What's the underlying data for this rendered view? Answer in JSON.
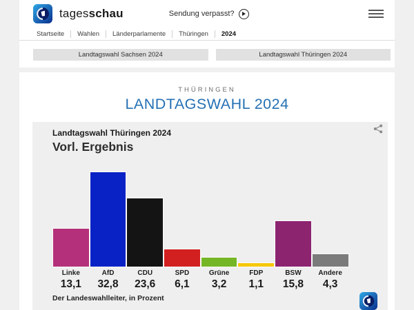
{
  "header": {
    "brand": {
      "regular": "tages",
      "bold": "schau"
    },
    "sendung_verpasst": "Sendung verpasst?",
    "breadcrumb": [
      "Startseite",
      "Wahlen",
      "Länderparlamente",
      "Thüringen",
      "2024"
    ],
    "tabs": [
      "Landtagswahl Sachsen 2024",
      "Landtagswahl Thüringen 2024"
    ]
  },
  "page": {
    "kicker": "THÜRINGEN",
    "title": "LANDTAGSWAHL 2024",
    "title_color": "#2470b4"
  },
  "chart_data": {
    "type": "bar",
    "title": "Landtagswahl Thüringen 2024",
    "subtitle": "Vorl. Ergebnis",
    "source": "Der Landeswahlleiter, in Prozent",
    "categories": [
      "Linke",
      "AfD",
      "CDU",
      "SPD",
      "Grüne",
      "FDP",
      "BSW",
      "Andere"
    ],
    "values": [
      13.1,
      32.8,
      23.6,
      6.1,
      3.2,
      1.1,
      15.8,
      4.3
    ],
    "value_labels": [
      "13,1",
      "32,8",
      "23,6",
      "6,1",
      "3,2",
      "1,1",
      "15,8",
      "4,3"
    ],
    "colors": [
      "#b5307a",
      "#0822c6",
      "#141414",
      "#d22020",
      "#74b626",
      "#f6c80a",
      "#8c2470",
      "#7b7b7b"
    ],
    "unit": "percent",
    "ylim": [
      0,
      35
    ],
    "grid": false,
    "legend": "none"
  }
}
